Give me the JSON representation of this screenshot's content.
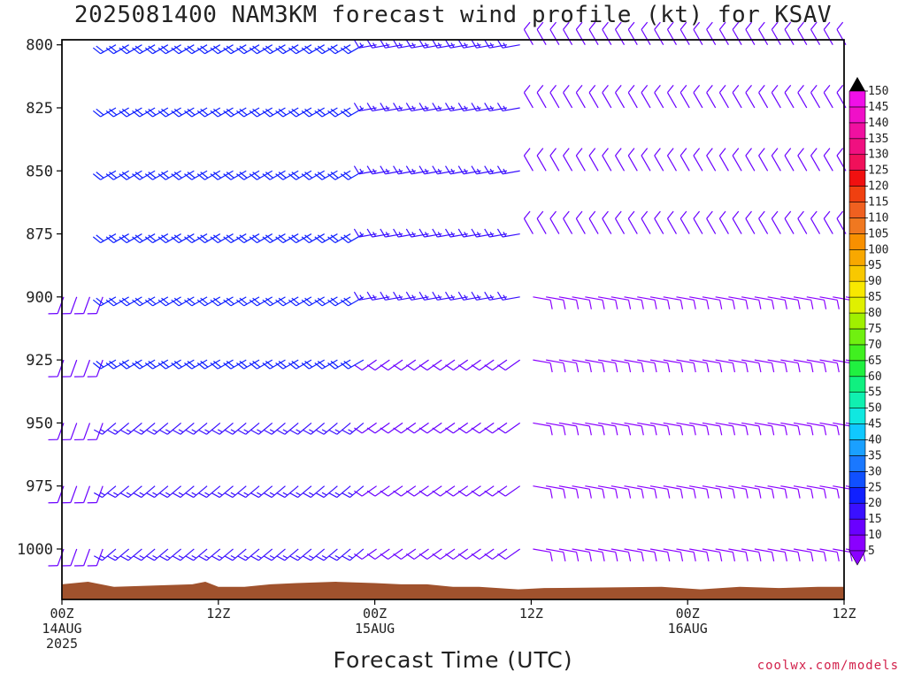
{
  "chart_data": {
    "type": "wind-barb-profile",
    "title": "2025081400 NAM3KM forecast wind profile (kt) for KSAV",
    "xlabel": "Forecast Time (UTC)",
    "y_axis": {
      "ticks": [
        "800",
        "825",
        "850",
        "875",
        "900",
        "925",
        "950",
        "975",
        "1000"
      ],
      "ylim": [
        798,
        1020
      ],
      "direction": "inverted"
    },
    "x_axis": {
      "ticks": [
        {
          "hour": 0,
          "lines": [
            "00Z",
            "14AUG",
            "2025"
          ]
        },
        {
          "hour": 12,
          "lines": [
            "12Z"
          ]
        },
        {
          "hour": 24,
          "lines": [
            "00Z",
            "15AUG"
          ]
        },
        {
          "hour": 36,
          "lines": [
            "12Z"
          ]
        },
        {
          "hour": 48,
          "lines": [
            "00Z",
            "16AUG"
          ]
        },
        {
          "hour": 60,
          "lines": [
            "12Z"
          ]
        }
      ],
      "xlim": [
        0,
        60
      ]
    },
    "colorbar": {
      "unit": "kt",
      "levels": [
        5,
        10,
        15,
        20,
        25,
        30,
        35,
        40,
        45,
        50,
        55,
        60,
        65,
        70,
        75,
        80,
        85,
        90,
        95,
        100,
        105,
        110,
        115,
        120,
        125,
        130,
        135,
        140,
        145,
        150
      ],
      "colors": [
        "#8a00ff",
        "#6a00ff",
        "#3a10ff",
        "#1020ff",
        "#1050ff",
        "#1a78ff",
        "#1aa0ff",
        "#10c8ff",
        "#10e8e0",
        "#10f0b0",
        "#10f080",
        "#20f040",
        "#40f020",
        "#70f010",
        "#a0f000",
        "#e0f000",
        "#f8e800",
        "#f8c800",
        "#f8a800",
        "#f89000",
        "#f07820",
        "#f06020",
        "#f04010",
        "#f01010",
        "#f0105a",
        "#f01080",
        "#f010a0",
        "#f010c8",
        "#f010e8",
        "#e800f0"
      ]
    },
    "terrain_color": "#a0522d",
    "wind_barbs": [
      {
        "hours": [
          0,
          3
        ],
        "levels": [
          1000,
          975,
          950,
          925,
          900
        ],
        "direction_deg": 200,
        "speed_kt": 10
      },
      {
        "hours": [
          4,
          23
        ],
        "levels": [
          800,
          825,
          850,
          875,
          900,
          925
        ],
        "direction_deg": 240,
        "speed_kt": 20
      },
      {
        "hours": [
          4,
          23
        ],
        "levels": [
          950,
          975,
          1000
        ],
        "direction_deg": 230,
        "speed_kt": 15
      },
      {
        "hours": [
          24,
          35
        ],
        "levels": [
          800,
          825,
          850,
          875,
          900
        ],
        "direction_deg": 260,
        "speed_kt": 15
      },
      {
        "hours": [
          24,
          35
        ],
        "levels": [
          925,
          950,
          975,
          1000
        ],
        "direction_deg": 235,
        "speed_kt": 10
      },
      {
        "hours": [
          36,
          60
        ],
        "levels": [
          800,
          825,
          850,
          875
        ],
        "direction_deg": 330,
        "speed_kt": 10
      },
      {
        "hours": [
          36,
          60
        ],
        "levels": [
          900,
          925,
          950,
          975,
          1000
        ],
        "direction_deg": 100,
        "speed_kt": 8
      }
    ]
  }
}
